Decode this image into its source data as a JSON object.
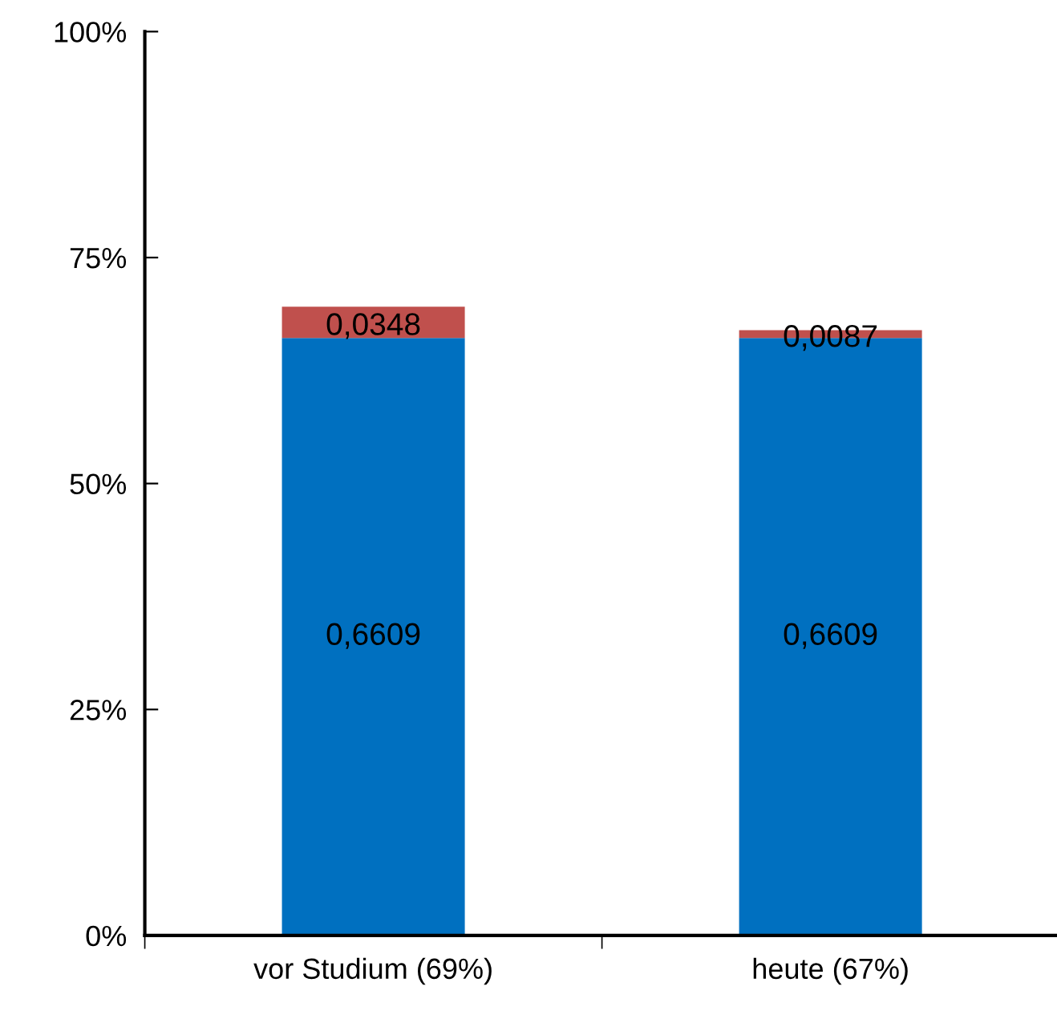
{
  "chart_data": {
    "type": "bar",
    "stacked": true,
    "categories": [
      "vor Studium (69%)",
      "heute (67%)"
    ],
    "series": [
      {
        "color": "#0070c0",
        "values": [
          0.6609,
          0.6609
        ],
        "value_labels": [
          "0,6609",
          "0,6609"
        ]
      },
      {
        "color": "#c0504d",
        "values": [
          0.0348,
          0.0087
        ],
        "value_labels": [
          "0,0348",
          "0,0087"
        ]
      }
    ],
    "ylim": [
      0,
      1
    ],
    "yticks": [
      {
        "value": 0,
        "label": "0%"
      },
      {
        "value": 0.25,
        "label": "25%"
      },
      {
        "value": 0.5,
        "label": "50%"
      },
      {
        "value": 0.75,
        "label": "75%"
      },
      {
        "value": 1,
        "label": "100%"
      }
    ],
    "grid": false,
    "legend": false
  }
}
